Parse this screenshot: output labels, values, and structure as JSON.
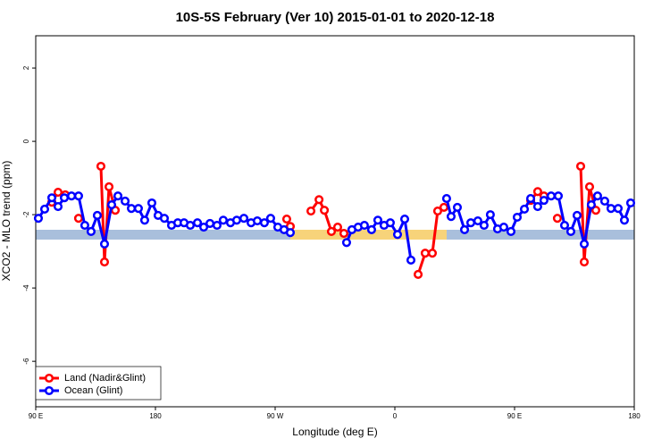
{
  "chart_data": {
    "type": "line",
    "title": "10S-5S February (Ver 10)   2015-01-01 to 2020-12-18",
    "x_label": "Longitude (deg E)",
    "y_label": "XCO2 - MLO trend (ppm)",
    "xlim": [
      90,
      540
    ],
    "ylim": [
      -7.24,
      2.88
    ],
    "xticks": [
      {
        "value": 90,
        "label": "90 E"
      },
      {
        "value": 180,
        "label": "180"
      },
      {
        "value": 270,
        "label": "90 W"
      },
      {
        "value": 360,
        "label": "0"
      },
      {
        "value": 450,
        "label": "90 E"
      },
      {
        "value": 540,
        "label": "180"
      }
    ],
    "yticks": [
      -6,
      -4,
      -2,
      0,
      2
    ],
    "legend": "bottom-left",
    "series": [
      {
        "name": "Land (Nadir&Glint)",
        "color": "#ff0000",
        "x": [
          102.1,
          106.8,
          112.2,
          null,
          122.2,
          null,
          139.0,
          141.7,
          145.1,
          149.8,
          null,
          278.7,
          281.4,
          null,
          296.9,
          303.0,
          307.0,
          312.3,
          317.0,
          321.7,
          null,
          377.5,
          382.8,
          388.2,
          392.2,
          396.9,
          null,
          462.1,
          467.4,
          472.1,
          null,
          482.2,
          null,
          499.7,
          502.4,
          506.4,
          511.1
        ],
        "values": [
          -1.66,
          -1.39,
          -1.46,
          null,
          -2.1,
          null,
          -0.68,
          -3.29,
          -1.24,
          -1.88,
          null,
          -2.12,
          -2.32,
          null,
          -1.9,
          -1.59,
          -1.88,
          -2.46,
          -2.34,
          -2.51,
          null,
          -3.63,
          -3.05,
          -3.05,
          -1.9,
          -1.8,
          null,
          -1.61,
          -1.37,
          -1.49,
          null,
          -2.1,
          null,
          -0.68,
          -3.29,
          -1.24,
          -1.88
        ]
      },
      {
        "name": "Ocean (Glint)",
        "color": "#0000ff",
        "x": [
          92.0,
          96.7,
          102.1,
          106.8,
          111.5,
          116.9,
          122.2,
          126.9,
          131.6,
          136.3,
          141.7,
          147.1,
          151.8,
          157.2,
          161.9,
          167.2,
          171.9,
          177.3,
          182.0,
          186.7,
          192.1,
          196.8,
          201.5,
          206.2,
          211.6,
          216.3,
          221.0,
          226.3,
          231.0,
          236.4,
          241.1,
          246.5,
          251.9,
          256.6,
          261.9,
          266.6,
          272.0,
          276.7,
          281.4,
          null,
          323.7,
          327.7,
          332.4,
          337.1,
          342.5,
          347.2,
          351.9,
          356.6,
          362.0,
          367.4,
          372.1,
          null,
          398.9,
          402.3,
          407.0,
          412.4,
          417.1,
          422.4,
          427.1,
          431.8,
          437.2,
          441.9,
          447.3,
          452.0,
          457.4,
          462.1,
          467.4,
          472.1,
          477.5,
          482.9,
          487.6,
          492.3,
          497.0,
          502.4,
          507.7,
          512.4,
          517.8,
          522.5,
          527.9,
          532.6,
          537.3
        ],
        "values": [
          -2.1,
          -1.85,
          -1.54,
          -1.78,
          -1.54,
          -1.49,
          -1.49,
          -2.29,
          -2.46,
          -2.02,
          -2.8,
          -1.73,
          -1.49,
          -1.63,
          -1.83,
          -1.83,
          -2.15,
          -1.68,
          -2.02,
          -2.1,
          -2.29,
          -2.22,
          -2.22,
          -2.29,
          -2.22,
          -2.34,
          -2.24,
          -2.29,
          -2.15,
          -2.22,
          -2.15,
          -2.1,
          -2.22,
          -2.17,
          -2.22,
          -2.1,
          -2.34,
          -2.41,
          -2.49,
          null,
          -2.76,
          -2.41,
          -2.34,
          -2.29,
          -2.41,
          -2.15,
          -2.29,
          -2.22,
          -2.54,
          -2.12,
          -3.24,
          null,
          -1.56,
          -2.05,
          -1.8,
          -2.41,
          -2.22,
          -2.17,
          -2.29,
          -2.0,
          -2.39,
          -2.34,
          -2.46,
          -2.07,
          -1.85,
          -1.56,
          -1.78,
          -1.61,
          -1.49,
          -1.49,
          -2.29,
          -2.46,
          -2.02,
          -2.8,
          -1.73,
          -1.49,
          -1.63,
          -1.83,
          -1.83,
          -2.15,
          -1.68
        ]
      }
    ]
  }
}
